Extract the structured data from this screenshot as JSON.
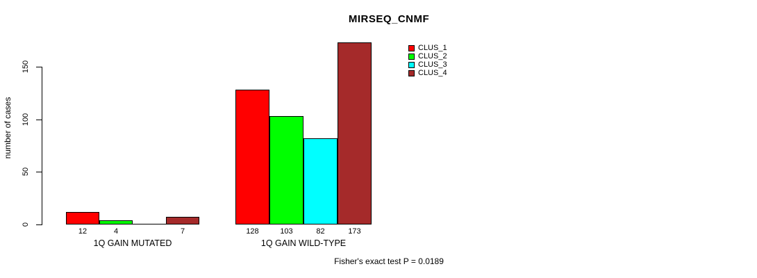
{
  "chart_data": {
    "type": "bar",
    "title": "MIRSEQ_CNMF",
    "ylabel": "number of cases",
    "yticks": [
      0,
      50,
      100,
      150
    ],
    "ylim": [
      0,
      175
    ],
    "grid": false,
    "legend_position": "top-right",
    "categories": [
      "1Q GAIN MUTATED",
      "1Q GAIN WILD-TYPE"
    ],
    "series": [
      {
        "name": "CLUS_1",
        "color": "#FF0000",
        "values": [
          12,
          128
        ]
      },
      {
        "name": "CLUS_2",
        "color": "#00FF00",
        "values": [
          4,
          103
        ]
      },
      {
        "name": "CLUS_3",
        "color": "#00FFFF",
        "values": [
          0,
          82
        ]
      },
      {
        "name": "CLUS_4",
        "color": "#A52A2A",
        "values": [
          7,
          173
        ]
      }
    ],
    "bar_value_labels": [
      [
        "12",
        "4",
        "",
        "7"
      ],
      [
        "128",
        "103",
        "82",
        "173"
      ]
    ],
    "footnote": "Fisher's exact test P = 0.0189"
  }
}
